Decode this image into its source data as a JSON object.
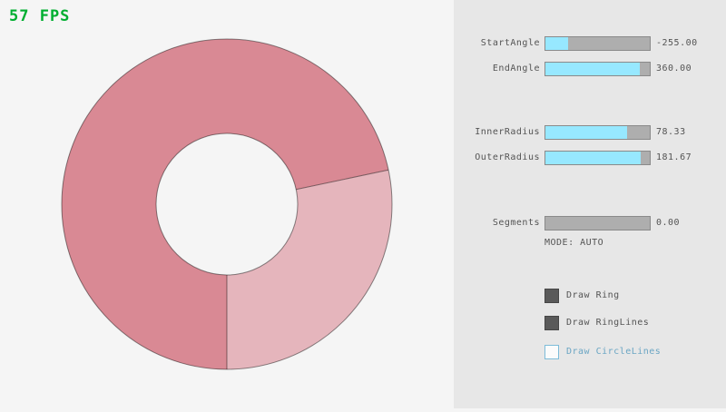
{
  "fps": {
    "label": "57 FPS",
    "color": "#00ae30"
  },
  "ring": {
    "start_angle": -255.0,
    "end_angle": 360.0,
    "inner_radius": 78.33,
    "outer_radius": 181.67,
    "segments": 0,
    "mode": "AUTO",
    "colors": {
      "overlap_sector": "#d98994",
      "single_sector": "#e5b5bc",
      "ring_lines": "rgba(0,0,0,0.45)"
    }
  },
  "panel": {
    "sliders": [
      {
        "label": "StartAngle",
        "value": "-255.00",
        "fill": 0.22
      },
      {
        "label": "EndAngle",
        "value": "360.00",
        "fill": 0.9
      },
      {
        "label": "InnerRadius",
        "value": "78.33",
        "fill": 0.78
      },
      {
        "label": "OuterRadius",
        "value": "181.67",
        "fill": 0.91
      },
      {
        "label": "Segments",
        "value": "0.00",
        "fill": 0.0
      }
    ],
    "mode_text": "MODE: AUTO",
    "checkboxes": [
      {
        "label": "Draw Ring",
        "checked": true
      },
      {
        "label": "Draw RingLines",
        "checked": true
      },
      {
        "label": "Draw CircleLines",
        "checked": false
      }
    ],
    "accent_fill": "#97e8ff"
  }
}
